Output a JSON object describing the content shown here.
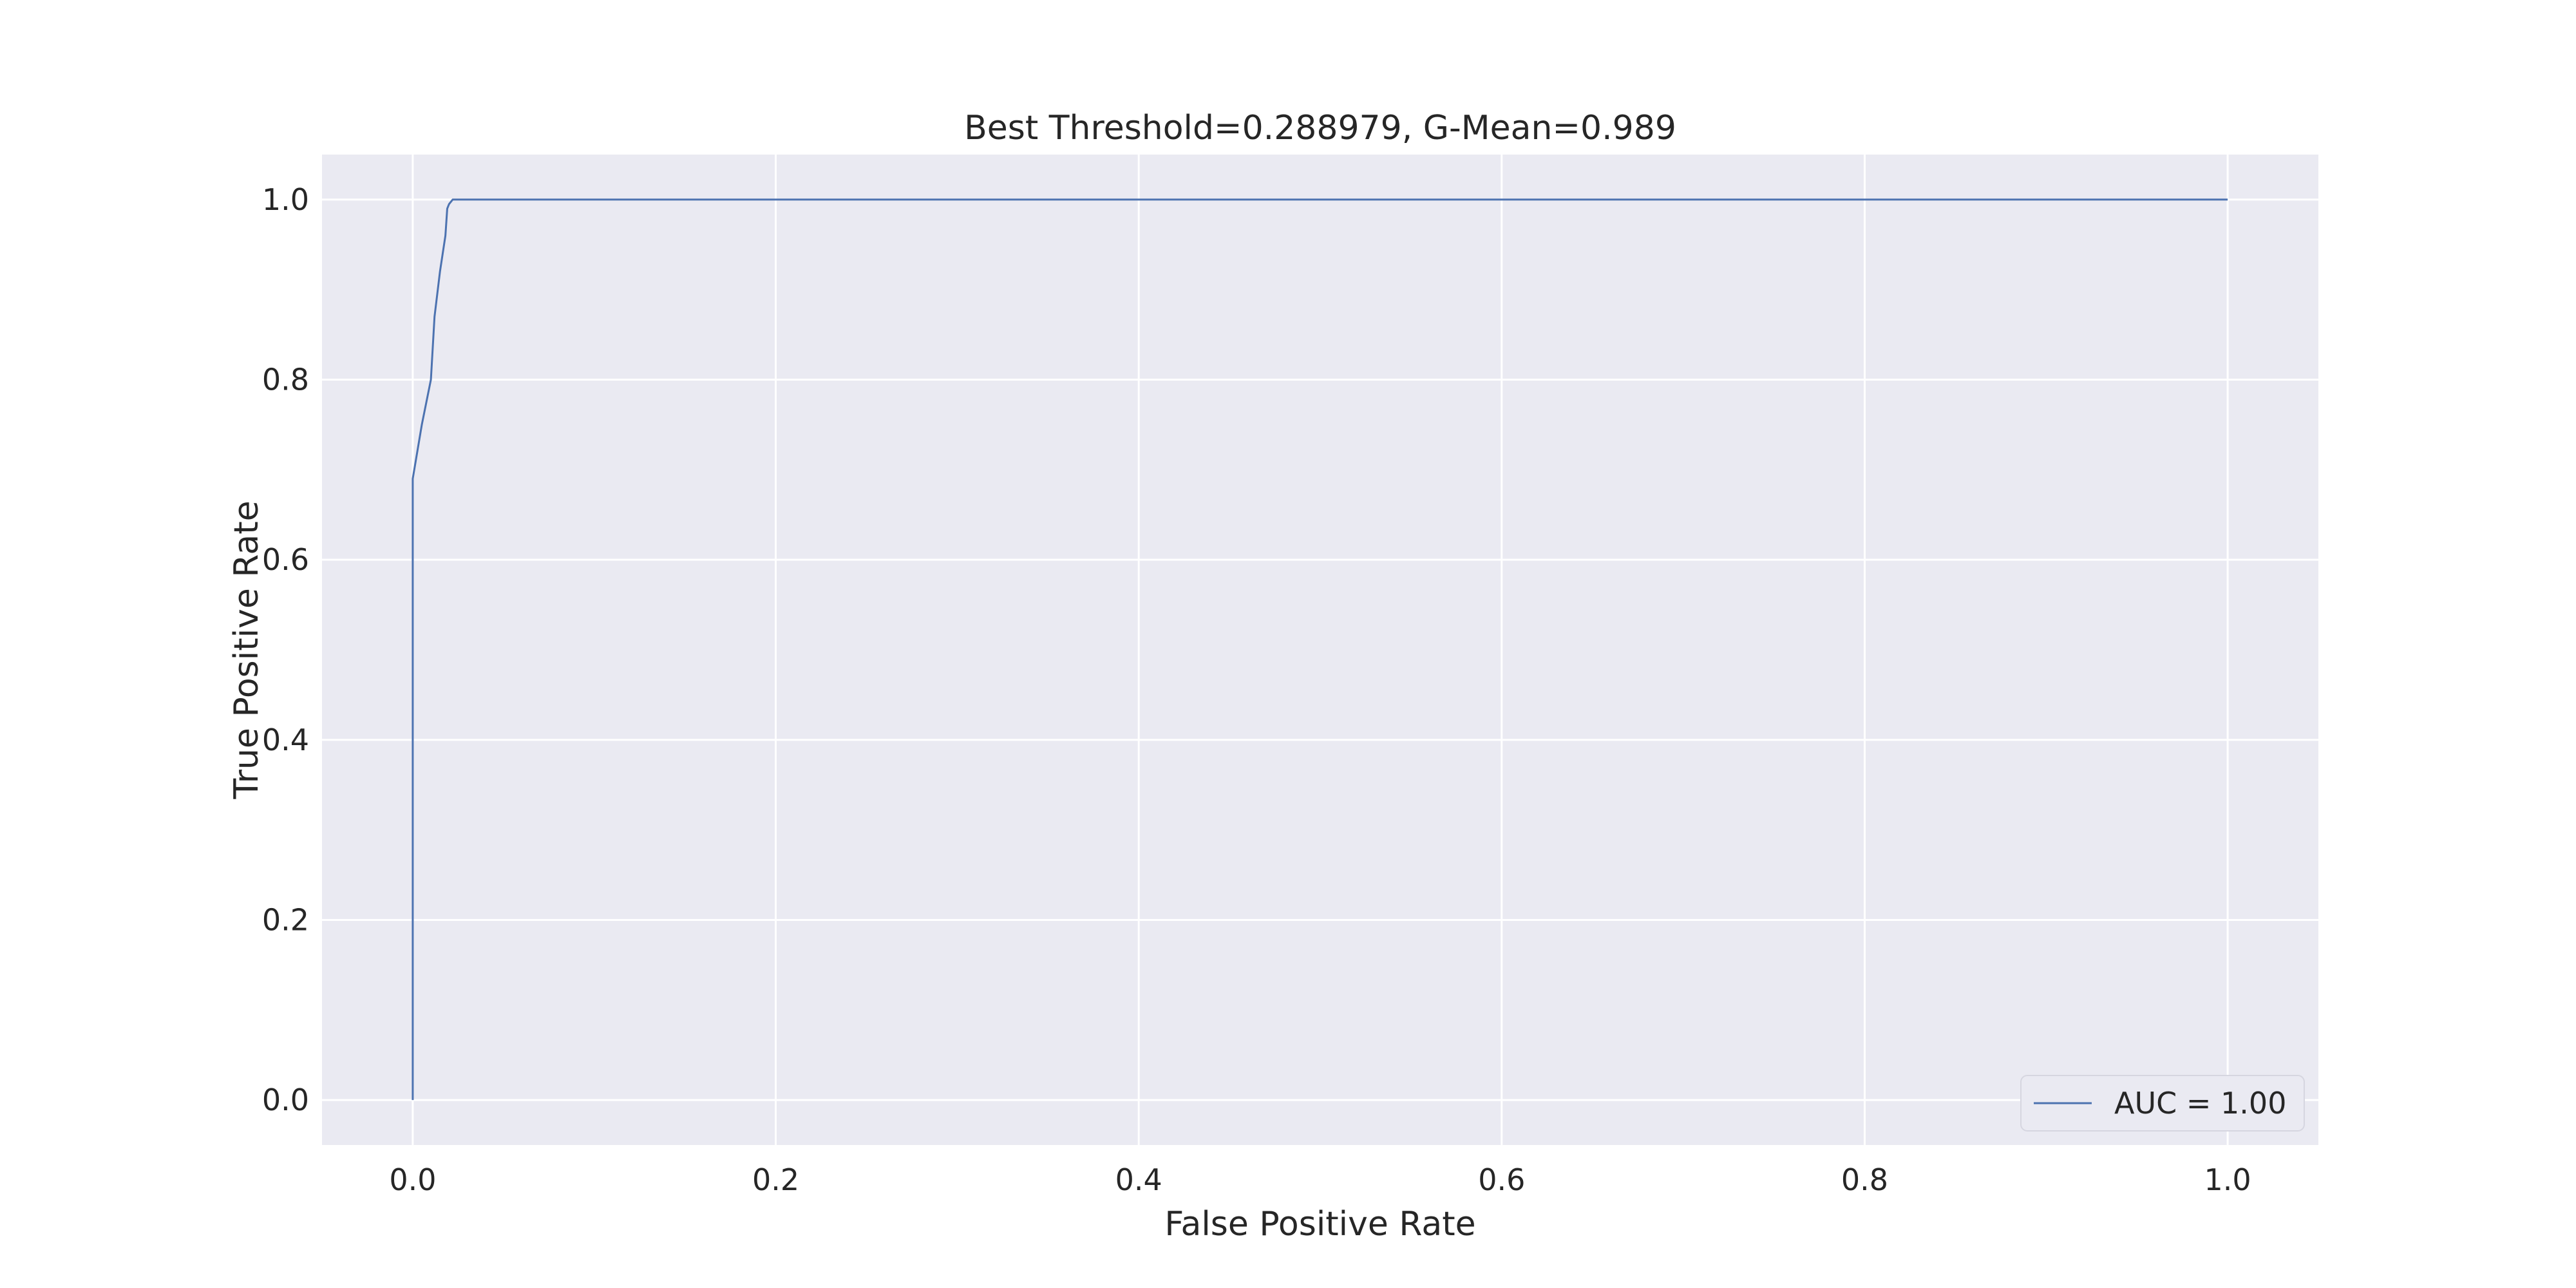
{
  "chart_data": {
    "type": "line",
    "title": "Best Threshold=0.288979, G-Mean=0.989",
    "xlabel": "False Positive Rate",
    "ylabel": "True Positive Rate",
    "xlim": [
      -0.05,
      1.05
    ],
    "ylim": [
      -0.05,
      1.05
    ],
    "xticks": [
      0.0,
      0.2,
      0.4,
      0.6,
      0.8,
      1.0
    ],
    "xtick_labels": [
      "0.0",
      "0.2",
      "0.4",
      "0.6",
      "0.8",
      "1.0"
    ],
    "yticks": [
      0.0,
      0.2,
      0.4,
      0.6,
      0.8,
      1.0
    ],
    "ytick_labels": [
      "0.0",
      "0.2",
      "0.4",
      "0.6",
      "0.8",
      "1.0"
    ],
    "grid": true,
    "legend_position": "lower-right",
    "background_color": "#eaeaf2",
    "grid_color": "#ffffff",
    "series": [
      {
        "name": "AUC = 1.00",
        "color": "#4c72b0",
        "x": [
          0.0,
          0.0,
          0.0,
          0.005,
          0.01,
          0.012,
          0.015,
          0.018,
          0.019,
          0.02,
          0.022,
          0.03,
          0.035,
          0.038,
          1.0
        ],
        "y": [
          0.0,
          0.5,
          0.69,
          0.75,
          0.8,
          0.87,
          0.92,
          0.96,
          0.99,
          0.995,
          1.0,
          1.0,
          1.0,
          1.0,
          1.0
        ]
      }
    ]
  }
}
